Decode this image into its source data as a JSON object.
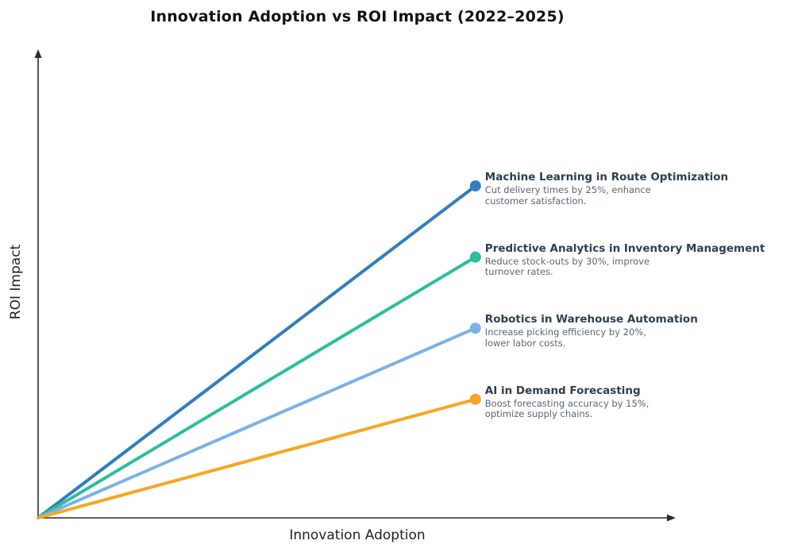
{
  "chart_data": {
    "type": "line",
    "title": "Innovation Adoption vs ROI Impact (2022–2025)",
    "xlabel": "Innovation Adoption",
    "ylabel": "ROI Impact",
    "xlim": [
      0,
      1
    ],
    "ylim": [
      0,
      1
    ],
    "grid": false,
    "axis_ticks": "none",
    "legend_position": "inline-labels-at-line-ends",
    "colors": {
      "axis": "#2b2b2b",
      "title_text": "#111111",
      "series_name_text": "#2c3e50",
      "series_desc_text": "#5c6670",
      "background": "#ffffff"
    },
    "series": [
      {
        "name": "Machine Learning in Route Optimization",
        "description": "Cut delivery times by 25%, enhance\ncustomer satisfaction.",
        "color": "#2f7ebe",
        "x": [
          0,
          0.68
        ],
        "y": [
          0,
          0.7
        ]
      },
      {
        "name": "Predictive Analytics in Inventory Management",
        "description": "Reduce stock-outs by 30%, improve\nturnover rates.",
        "color": "#2dbe9c",
        "x": [
          0,
          0.68
        ],
        "y": [
          0,
          0.55
        ]
      },
      {
        "name": "Robotics in Warehouse Automation",
        "description": "Increase picking efficiency by 20%,\nlower labor costs.",
        "color": "#79b2e5",
        "x": [
          0,
          0.68
        ],
        "y": [
          0,
          0.4
        ]
      },
      {
        "name": "AI in Demand Forecasting",
        "description": "Boost forecasting accuracy by 15%,\noptimize supply chains.",
        "color": "#f6a623",
        "x": [
          0,
          0.68
        ],
        "y": [
          0,
          0.25
        ]
      }
    ]
  }
}
